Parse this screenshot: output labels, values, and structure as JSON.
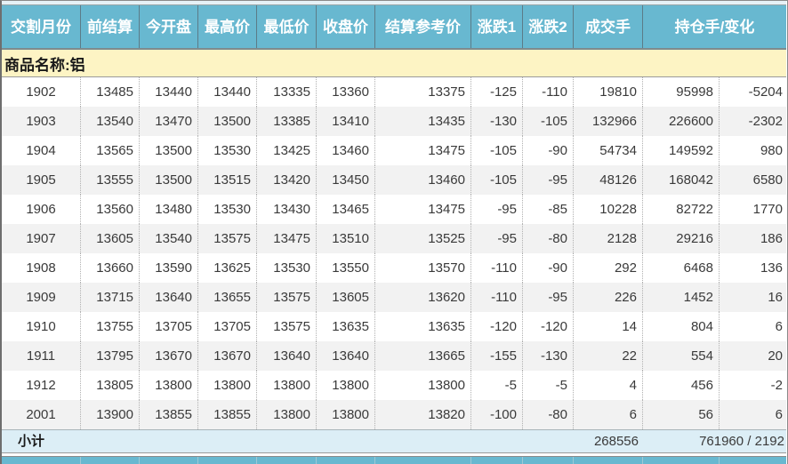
{
  "colors": {
    "header_blue": "#68b8d0",
    "product_yellow": "#fdf4c4",
    "subtotal_blue": "#dceef6",
    "alt_row_gray": "#f2f2f2",
    "header_text": "#ffffff"
  },
  "table": {
    "headers": [
      "交割月份",
      "前结算",
      "今开盘",
      "最高价",
      "最低价",
      "收盘价",
      "结算参考价",
      "涨跌1",
      "涨跌2",
      "成交手",
      "持仓手/变化"
    ],
    "product_label": "商品名称:铝",
    "rows": [
      [
        "1902",
        "13485",
        "13440",
        "13440",
        "13335",
        "13360",
        "13375",
        "-125",
        "-110",
        "19810",
        "95998",
        "-5204"
      ],
      [
        "1903",
        "13540",
        "13470",
        "13500",
        "13385",
        "13410",
        "13435",
        "-130",
        "-105",
        "132966",
        "226600",
        "-2302"
      ],
      [
        "1904",
        "13565",
        "13500",
        "13530",
        "13425",
        "13460",
        "13475",
        "-105",
        "-90",
        "54734",
        "149592",
        "980"
      ],
      [
        "1905",
        "13555",
        "13500",
        "13515",
        "13420",
        "13450",
        "13460",
        "-105",
        "-95",
        "48126",
        "168042",
        "6580"
      ],
      [
        "1906",
        "13560",
        "13480",
        "13530",
        "13430",
        "13465",
        "13475",
        "-95",
        "-85",
        "10228",
        "82722",
        "1770"
      ],
      [
        "1907",
        "13605",
        "13540",
        "13575",
        "13475",
        "13510",
        "13525",
        "-95",
        "-80",
        "2128",
        "29216",
        "186"
      ],
      [
        "1908",
        "13660",
        "13590",
        "13625",
        "13530",
        "13550",
        "13570",
        "-110",
        "-90",
        "292",
        "6468",
        "136"
      ],
      [
        "1909",
        "13715",
        "13640",
        "13655",
        "13575",
        "13605",
        "13620",
        "-110",
        "-95",
        "226",
        "1452",
        "16"
      ],
      [
        "1910",
        "13755",
        "13705",
        "13705",
        "13575",
        "13635",
        "13635",
        "-120",
        "-120",
        "14",
        "804",
        "6"
      ],
      [
        "1911",
        "13795",
        "13670",
        "13670",
        "13640",
        "13640",
        "13665",
        "-155",
        "-130",
        "22",
        "554",
        "20"
      ],
      [
        "1912",
        "13805",
        "13800",
        "13800",
        "13800",
        "13800",
        "13800",
        "-5",
        "-5",
        "4",
        "456",
        "-2"
      ],
      [
        "2001",
        "13900",
        "13855",
        "13855",
        "13800",
        "13800",
        "13820",
        "-100",
        "-80",
        "6",
        "56",
        "6"
      ]
    ],
    "subtotal": {
      "label": "小计",
      "volume_total": "268556",
      "open_interest_total": "761960 / 2192"
    }
  }
}
